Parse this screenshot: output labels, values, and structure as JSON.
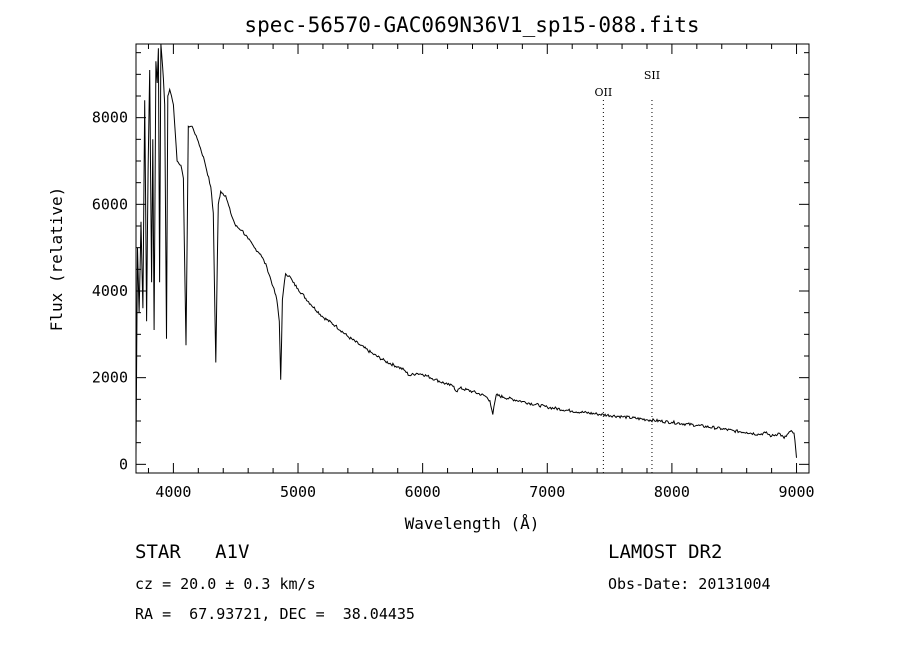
{
  "chart_data": {
    "type": "line",
    "title": "spec-56570-GAC069N36V1_sp15-088.fits",
    "xlabel": "Wavelength (Å)",
    "ylabel": "Flux (relative)",
    "xlim": [
      3700,
      9100
    ],
    "ylim": [
      -200,
      9700
    ],
    "xticks": [
      4000,
      5000,
      6000,
      7000,
      8000,
      9000
    ],
    "yticks": [
      0,
      2000,
      4000,
      6000,
      8000
    ],
    "grid": false,
    "lines": [
      {
        "label": "OII",
        "x": 7450
      },
      {
        "label": "SII",
        "x": 7840
      }
    ],
    "series": [
      {
        "x": [
          3700,
          3712,
          3725,
          3740,
          3755,
          3770,
          3785,
          3797,
          3810,
          3825,
          3835,
          3845,
          3860,
          3870,
          3880,
          3889,
          3900,
          3920,
          3930,
          3945,
          3955,
          3970,
          3985,
          4000,
          4030,
          4060,
          4080,
          4101,
          4120,
          4150,
          4200,
          4250,
          4300,
          4320,
          4340,
          4360,
          4380,
          4420,
          4460,
          4500,
          4550,
          4600,
          4650,
          4700,
          4750,
          4800,
          4830,
          4850,
          4861,
          4875,
          4900,
          4930,
          4960,
          5000,
          5100,
          5200,
          5300,
          5400,
          5500,
          5600,
          5700,
          5800,
          5850,
          5893,
          5950,
          6000,
          6100,
          6200,
          6250,
          6270,
          6300,
          6400,
          6500,
          6540,
          6563,
          6590,
          6650,
          6800,
          7000,
          7200,
          7400,
          7600,
          7800,
          8000,
          8200,
          8400,
          8500,
          8600,
          8700,
          8750,
          8800,
          8860,
          8900,
          8950,
          8980,
          9000
        ],
        "values": [
          200,
          5000,
          3500,
          5600,
          3600,
          8400,
          3300,
          6800,
          9100,
          4200,
          7500,
          3100,
          9300,
          8800,
          9600,
          4200,
          9700,
          8900,
          8300,
          2900,
          8500,
          8650,
          8500,
          8300,
          7000,
          6900,
          6600,
          2750,
          7800,
          7800,
          7450,
          7000,
          6400,
          5800,
          2350,
          6000,
          6300,
          6200,
          5800,
          5500,
          5400,
          5200,
          5000,
          4850,
          4550,
          4100,
          3800,
          3300,
          1950,
          3800,
          4400,
          4350,
          4200,
          4050,
          3700,
          3400,
          3200,
          2950,
          2750,
          2550,
          2380,
          2250,
          2180,
          2050,
          2100,
          2080,
          1960,
          1840,
          1800,
          1680,
          1760,
          1680,
          1580,
          1470,
          1150,
          1600,
          1550,
          1450,
          1320,
          1230,
          1160,
          1100,
          1030,
          970,
          900,
          820,
          770,
          740,
          690,
          730,
          650,
          720,
          600,
          760,
          720,
          150
        ]
      }
    ]
  },
  "info": {
    "object": "STAR   A1V",
    "cz": "cz = 20.0 ± 0.3 km/s",
    "coords": "RA =  67.93721, DEC =  38.04435",
    "survey": "LAMOST DR2",
    "obs_date": "Obs-Date: 20131004"
  }
}
